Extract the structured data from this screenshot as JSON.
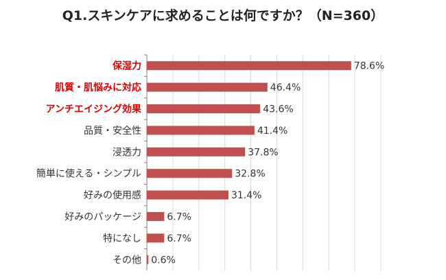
{
  "chart_data": {
    "type": "bar",
    "orientation": "horizontal",
    "title": "Q1.スキンケアに求めることは何ですか？（N=360）",
    "categories": [
      "保湿力",
      "肌質・肌悩みに対応",
      "アンチエイジング効果",
      "品質・安全性",
      "浸透力",
      "簡単に使える・シンプル",
      "好みの使用感",
      "好みのパッケージ",
      "特になし",
      "その他"
    ],
    "values": [
      78.6,
      46.4,
      43.6,
      41.4,
      37.8,
      32.8,
      31.4,
      6.7,
      6.7,
      0.6
    ],
    "value_labels": [
      "78.6%",
      "46.4%",
      "43.6%",
      "41.4%",
      "37.8%",
      "32.8%",
      "31.4%",
      "6.7%",
      "6.7%",
      "0.6%"
    ],
    "highlighted_categories": [
      "保湿力",
      "肌質・肌悩みに対応",
      "アンチエイジング効果"
    ],
    "xlim": [
      0,
      90
    ],
    "grid": true,
    "legend": "none",
    "bar_color": "#c0504d",
    "highlight_label_color": "#e00000",
    "label_color": "#333333",
    "grid_color": "#d9d9d9"
  }
}
